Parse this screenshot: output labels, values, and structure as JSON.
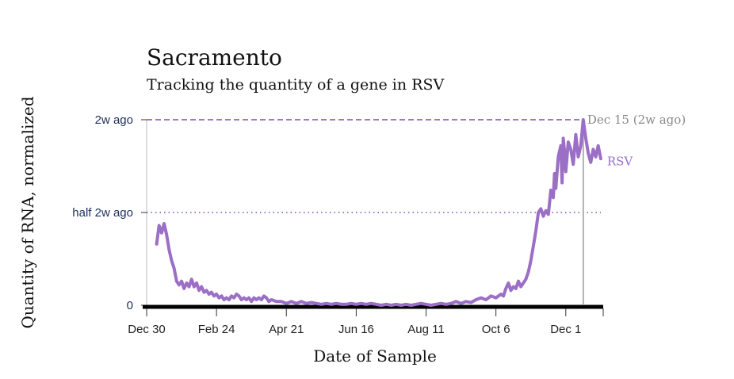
{
  "chart_data": {
    "type": "line",
    "title": "Sacramento",
    "subtitle": "Tracking the quantity of a gene in RSV",
    "xlabel": "Date of Sample",
    "ylabel": "Quantity of RNA, normalized",
    "y_ticks": [
      {
        "label": "2w ago",
        "value": 1.0
      },
      {
        "label": "half 2w ago",
        "value": 0.5
      },
      {
        "label": "0",
        "value": 0
      }
    ],
    "x_ticks": [
      {
        "label": "Dec 30",
        "day": 0
      },
      {
        "label": "Feb 24",
        "day": 56
      },
      {
        "label": "Apr 21",
        "day": 112
      },
      {
        "label": "Jun 16",
        "day": 168
      },
      {
        "label": "Aug 11",
        "day": 224
      },
      {
        "label": "Oct 6",
        "day": 280
      },
      {
        "label": "Dec 1",
        "day": 336
      }
    ],
    "xlim_days": [
      0,
      366
    ],
    "ylim": [
      0,
      1.0
    ],
    "reference_line": {
      "label": "Dec 15 (2w ago)",
      "day": 350
    },
    "series": [
      {
        "name": "RSV",
        "color": "#9b6fc6",
        "points": [
          [
            8,
            0.33
          ],
          [
            10,
            0.43
          ],
          [
            12,
            0.39
          ],
          [
            14,
            0.44
          ],
          [
            16,
            0.38
          ],
          [
            18,
            0.3
          ],
          [
            20,
            0.24
          ],
          [
            22,
            0.2
          ],
          [
            24,
            0.13
          ],
          [
            26,
            0.11
          ],
          [
            28,
            0.13
          ],
          [
            30,
            0.09
          ],
          [
            32,
            0.12
          ],
          [
            34,
            0.1
          ],
          [
            36,
            0.14
          ],
          [
            38,
            0.1
          ],
          [
            40,
            0.12
          ],
          [
            42,
            0.08
          ],
          [
            44,
            0.1
          ],
          [
            46,
            0.07
          ],
          [
            48,
            0.08
          ],
          [
            50,
            0.06
          ],
          [
            52,
            0.07
          ],
          [
            54,
            0.05
          ],
          [
            56,
            0.06
          ],
          [
            58,
            0.04
          ],
          [
            60,
            0.05
          ],
          [
            62,
            0.03
          ],
          [
            64,
            0.04
          ],
          [
            66,
            0.03
          ],
          [
            68,
            0.05
          ],
          [
            70,
            0.04
          ],
          [
            72,
            0.06
          ],
          [
            74,
            0.05
          ],
          [
            76,
            0.03
          ],
          [
            78,
            0.04
          ],
          [
            80,
            0.03
          ],
          [
            82,
            0.04
          ],
          [
            84,
            0.02
          ],
          [
            86,
            0.04
          ],
          [
            88,
            0.03
          ],
          [
            90,
            0.04
          ],
          [
            92,
            0.03
          ],
          [
            94,
            0.05
          ],
          [
            96,
            0.04
          ],
          [
            98,
            0.02
          ],
          [
            100,
            0.03
          ],
          [
            104,
            0.02
          ],
          [
            108,
            0.02
          ],
          [
            112,
            0.01
          ],
          [
            116,
            0.02
          ],
          [
            120,
            0.01
          ],
          [
            124,
            0.02
          ],
          [
            128,
            0.01
          ],
          [
            132,
            0.015
          ],
          [
            136,
            0.01
          ],
          [
            140,
            0.005
          ],
          [
            144,
            0.01
          ],
          [
            148,
            0.005
          ],
          [
            152,
            0.01
          ],
          [
            156,
            0.005
          ],
          [
            160,
            0.005
          ],
          [
            164,
            0.01
          ],
          [
            168,
            0.005
          ],
          [
            172,
            0.01
          ],
          [
            176,
            0.005
          ],
          [
            180,
            0.01
          ],
          [
            184,
            0.005
          ],
          [
            188,
            0.0
          ],
          [
            192,
            0.005
          ],
          [
            196,
            0.0
          ],
          [
            200,
            0.005
          ],
          [
            204,
            0.0
          ],
          [
            208,
            0.005
          ],
          [
            212,
            0.0
          ],
          [
            216,
            0.005
          ],
          [
            220,
            0.01
          ],
          [
            224,
            0.005
          ],
          [
            228,
            0.0
          ],
          [
            232,
            0.005
          ],
          [
            236,
            0.01
          ],
          [
            240,
            0.005
          ],
          [
            244,
            0.01
          ],
          [
            248,
            0.02
          ],
          [
            252,
            0.01
          ],
          [
            256,
            0.02
          ],
          [
            260,
            0.015
          ],
          [
            264,
            0.03
          ],
          [
            268,
            0.04
          ],
          [
            272,
            0.03
          ],
          [
            276,
            0.05
          ],
          [
            280,
            0.04
          ],
          [
            284,
            0.06
          ],
          [
            286,
            0.05
          ],
          [
            288,
            0.09
          ],
          [
            290,
            0.12
          ],
          [
            292,
            0.08
          ],
          [
            294,
            0.1
          ],
          [
            296,
            0.09
          ],
          [
            298,
            0.13
          ],
          [
            300,
            0.1
          ],
          [
            302,
            0.12
          ],
          [
            304,
            0.14
          ],
          [
            306,
            0.18
          ],
          [
            308,
            0.24
          ],
          [
            310,
            0.32
          ],
          [
            312,
            0.4
          ],
          [
            314,
            0.5
          ],
          [
            316,
            0.52
          ],
          [
            318,
            0.48
          ],
          [
            320,
            0.51
          ],
          [
            322,
            0.49
          ],
          [
            324,
            0.62
          ],
          [
            326,
            0.58
          ],
          [
            327,
            0.71
          ],
          [
            328,
            0.63
          ],
          [
            330,
            0.8
          ],
          [
            332,
            0.86
          ],
          [
            333,
            0.66
          ],
          [
            334,
            0.9
          ],
          [
            335,
            0.83
          ],
          [
            336,
            0.72
          ],
          [
            338,
            0.88
          ],
          [
            340,
            0.84
          ],
          [
            342,
            0.76
          ],
          [
            344,
            0.92
          ],
          [
            346,
            0.8
          ],
          [
            348,
            0.86
          ],
          [
            350,
            1.0
          ],
          [
            352,
            0.9
          ],
          [
            354,
            0.82
          ],
          [
            356,
            0.77
          ],
          [
            358,
            0.84
          ],
          [
            360,
            0.8
          ],
          [
            362,
            0.86
          ],
          [
            364,
            0.79
          ]
        ]
      }
    ]
  }
}
